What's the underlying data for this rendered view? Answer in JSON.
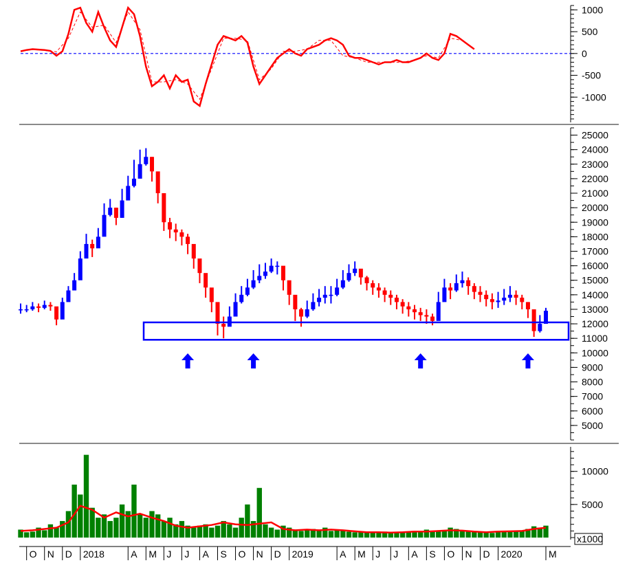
{
  "colors": {
    "background": "#ffffff",
    "osc_line": "#ff0000",
    "osc_zero": "#0000ff",
    "candle_up": "#0000ff",
    "candle_down": "#ff0000",
    "volume_bar": "#008000",
    "volume_ma": "#ff0000",
    "support_box": "#0000ff",
    "arrow": "#0000ff",
    "axis": "#000000"
  },
  "chart_data": [
    {
      "type": "line",
      "panel": "oscillator",
      "ylim": [
        -1500,
        1100
      ],
      "yticks": [
        1000,
        500,
        0,
        -500,
        -1000
      ],
      "zero_line": 0,
      "series": [
        {
          "style": "solid",
          "x": [
            0,
            5,
            10,
            15,
            20,
            25,
            30,
            35,
            40,
            45,
            50,
            55,
            60,
            65,
            70,
            75,
            80,
            85,
            90,
            95,
            100,
            105,
            110,
            115,
            120,
            125,
            130,
            135,
            140,
            145,
            150,
            155,
            160,
            165,
            170,
            175,
            180,
            185,
            190,
            195,
            200,
            205,
            210,
            215,
            220,
            225,
            230,
            235,
            240,
            245,
            250,
            255,
            260,
            265,
            270,
            275,
            280,
            285,
            290,
            295,
            300,
            305,
            310,
            315,
            320,
            325,
            330,
            335,
            340,
            345,
            350,
            355,
            360,
            365,
            370,
            375,
            380
          ],
          "y": [
            50,
            80,
            100,
            90,
            80,
            60,
            -50,
            50,
            450,
            1000,
            1050,
            700,
            500,
            950,
            600,
            300,
            150,
            600,
            1050,
            900,
            400,
            -300,
            -750,
            -650,
            -500,
            -800,
            -500,
            -650,
            -600,
            -1100,
            -1200,
            -700,
            -250,
            200,
            400,
            350,
            300,
            400,
            250,
            -300,
            -700,
            -500,
            -300,
            -100,
            0,
            100,
            0,
            -50,
            100,
            150,
            200,
            300,
            350,
            300,
            200,
            -50,
            -100,
            -100,
            -150,
            -200,
            -250,
            -200,
            -200,
            -150,
            -200,
            -200,
            -150,
            -100,
            0,
            -100,
            -150,
            0,
            450,
            400,
            300,
            200,
            100
          ]
        },
        {
          "style": "dashed",
          "x": [
            0,
            10,
            20,
            30,
            40,
            50,
            60,
            70,
            80,
            90,
            100,
            110,
            120,
            130,
            140,
            150,
            160,
            170,
            180,
            190,
            200,
            210,
            220,
            230,
            240,
            250,
            260,
            270,
            280,
            290,
            300,
            310,
            320,
            330,
            340,
            350,
            360,
            370,
            380
          ],
          "y": [
            60,
            90,
            70,
            40,
            350,
            950,
            600,
            650,
            250,
            950,
            550,
            -650,
            -650,
            -600,
            -700,
            -1050,
            -350,
            350,
            350,
            300,
            -600,
            -350,
            50,
            50,
            100,
            300,
            300,
            -50,
            -100,
            -200,
            -200,
            -200,
            -200,
            -150,
            -50,
            -100,
            350,
            300,
            100
          ]
        }
      ]
    },
    {
      "type": "candlestick",
      "panel": "price",
      "ylim": [
        4000,
        25500
      ],
      "yticks": [
        25000,
        24000,
        23000,
        22000,
        21000,
        20000,
        19000,
        18000,
        17000,
        16000,
        15000,
        14000,
        13000,
        12000,
        11000,
        10000,
        9000,
        8000,
        7000,
        6000,
        5000
      ],
      "x": [
        0,
        5,
        10,
        15,
        20,
        25,
        30,
        35,
        40,
        45,
        50,
        55,
        60,
        65,
        70,
        75,
        80,
        85,
        90,
        95,
        100,
        105,
        110,
        115,
        120,
        125,
        130,
        135,
        140,
        145,
        150,
        155,
        160,
        165,
        170,
        175,
        180,
        185,
        190,
        195,
        200,
        205,
        210,
        215,
        220,
        225,
        230,
        235,
        240,
        245,
        250,
        255,
        260,
        265,
        270,
        275,
        280,
        285,
        290,
        295,
        300,
        305,
        310,
        315,
        320,
        325,
        330,
        335,
        340,
        345,
        350,
        355,
        360,
        365,
        370,
        375,
        380,
        385,
        390,
        395,
        400,
        405,
        410,
        415,
        420,
        425,
        430,
        435,
        440
      ],
      "close": [
        13000,
        13000,
        13200,
        13100,
        13300,
        13200,
        12300,
        13500,
        14300,
        15000,
        16500,
        17500,
        17200,
        18000,
        19500,
        20000,
        19300,
        20500,
        21500,
        22000,
        23000,
        23500,
        22500,
        21000,
        19000,
        18500,
        18300,
        18000,
        17500,
        16500,
        15500,
        14500,
        13500,
        12000,
        11800,
        12500,
        13500,
        14000,
        14500,
        15000,
        15300,
        15600,
        16000,
        16000,
        15000,
        14000,
        13000,
        12500,
        13000,
        13500,
        13800,
        14000,
        14000,
        14500,
        15000,
        15500,
        15800,
        15200,
        14800,
        14500,
        14300,
        14000,
        13800,
        13500,
        13200,
        13000,
        12800,
        12600,
        12500,
        12200,
        13500,
        14500,
        14300,
        14800,
        15000,
        14600,
        14200,
        14000,
        13700,
        13500,
        13600,
        13800,
        14000,
        13800,
        13500,
        13000,
        11500,
        12000,
        12900
      ],
      "high": [
        13400,
        13300,
        13500,
        13400,
        13600,
        13500,
        13000,
        13800,
        14600,
        15500,
        17000,
        18200,
        17800,
        18600,
        20300,
        20600,
        20000,
        21300,
        22200,
        23300,
        24000,
        24100,
        23500,
        21800,
        20100,
        19300,
        18900,
        18500,
        18200,
        17400,
        16400,
        15300,
        14300,
        12800,
        12500,
        13200,
        14100,
        14600,
        15100,
        15700,
        16100,
        16200,
        16500,
        16300,
        15700,
        14600,
        13600,
        13100,
        13600,
        14100,
        14400,
        14600,
        14600,
        15100,
        15700,
        16100,
        16300,
        15700,
        15300,
        15000,
        14800,
        14500,
        14300,
        14000,
        13700,
        13500,
        13300,
        13100,
        13000,
        12700,
        14200,
        15100,
        14800,
        15400,
        15600,
        15200,
        14800,
        14600,
        14300,
        14100,
        14200,
        14400,
        14600,
        14300,
        14000,
        13500,
        12300,
        12600,
        13100
      ],
      "low": [
        12700,
        12800,
        12900,
        12800,
        13000,
        12900,
        11900,
        13100,
        13900,
        14500,
        16000,
        16900,
        16600,
        17400,
        18900,
        19400,
        18800,
        19900,
        20800,
        21400,
        22300,
        22900,
        21800,
        20300,
        18400,
        17900,
        17700,
        17400,
        16800,
        15800,
        14800,
        13800,
        12800,
        11200,
        11000,
        11900,
        12900,
        13400,
        13900,
        14400,
        14800,
        15100,
        15500,
        15400,
        14300,
        13300,
        12200,
        11800,
        12400,
        12900,
        13200,
        13400,
        13400,
        13900,
        14400,
        14900,
        15300,
        14700,
        14300,
        14000,
        13800,
        13500,
        13300,
        13000,
        12700,
        12500,
        12300,
        12200,
        12000,
        11900,
        12700,
        13900,
        13700,
        14200,
        14500,
        14000,
        13700,
        13500,
        13200,
        13000,
        13100,
        13300,
        13500,
        13300,
        13000,
        12400,
        11100,
        11400,
        12300
      ],
      "support_zone": [
        10900,
        12100
      ],
      "support_tests_x": [
        140,
        195,
        335,
        425
      ]
    },
    {
      "type": "bar",
      "panel": "volume",
      "ylim": [
        0,
        13500
      ],
      "yticks": [
        10000,
        5000,
        0
      ],
      "unit": "x1000",
      "x": [
        0,
        5,
        10,
        15,
        20,
        25,
        30,
        35,
        40,
        45,
        50,
        55,
        60,
        65,
        70,
        75,
        80,
        85,
        90,
        95,
        100,
        105,
        110,
        115,
        120,
        125,
        130,
        135,
        140,
        145,
        150,
        155,
        160,
        165,
        170,
        175,
        180,
        185,
        190,
        195,
        200,
        205,
        210,
        215,
        220,
        225,
        230,
        235,
        240,
        245,
        250,
        255,
        260,
        265,
        270,
        275,
        280,
        285,
        290,
        295,
        300,
        305,
        310,
        315,
        320,
        325,
        330,
        335,
        340,
        345,
        350,
        355,
        360,
        365,
        370,
        375,
        380,
        385,
        390,
        395,
        400,
        405,
        410,
        415,
        420,
        425,
        430,
        435,
        440
      ],
      "values": [
        1200,
        800,
        900,
        1500,
        1100,
        2000,
        1500,
        2500,
        4000,
        8000,
        6500,
        12500,
        4500,
        3000,
        3500,
        2500,
        3000,
        5000,
        4000,
        8000,
        3500,
        3000,
        4000,
        3500,
        2500,
        3000,
        2000,
        2500,
        1800,
        1500,
        1800,
        2000,
        1500,
        1800,
        2500,
        2000,
        1500,
        3000,
        5000,
        2500,
        7500,
        2000,
        1500,
        1200,
        1800,
        1500,
        1200,
        1000,
        1200,
        1300,
        1200,
        1500,
        1000,
        1200,
        1100,
        900,
        800,
        900,
        800,
        700,
        800,
        900,
        800,
        700,
        900,
        800,
        1000,
        800,
        1200,
        900,
        1000,
        1000,
        1500,
        1300,
        1100,
        1000,
        900,
        800,
        800,
        700,
        900,
        900,
        1000,
        900,
        1100,
        1300,
        1700,
        1500,
        1800
      ],
      "ma_x": [
        0,
        10,
        20,
        30,
        40,
        50,
        60,
        70,
        80,
        90,
        100,
        110,
        120,
        130,
        140,
        150,
        160,
        170,
        180,
        190,
        200,
        210,
        220,
        230,
        240,
        250,
        260,
        270,
        280,
        290,
        300,
        310,
        320,
        330,
        340,
        350,
        360,
        370,
        380,
        390,
        400,
        410,
        420,
        430,
        440
      ],
      "ma_values": [
        1000,
        1100,
        1300,
        1500,
        2300,
        4800,
        4200,
        3000,
        3800,
        3200,
        3600,
        3000,
        2500,
        1800,
        1500,
        1700,
        1900,
        2300,
        2000,
        1900,
        2100,
        2300,
        1300,
        1100,
        1200,
        1100,
        1200,
        1100,
        950,
        800,
        800,
        750,
        800,
        900,
        900,
        1000,
        1100,
        1050,
        900,
        800,
        900,
        950,
        1000,
        1300,
        1500
      ]
    }
  ],
  "x_axis": {
    "labels": [
      {
        "text": "O",
        "x": 5
      },
      {
        "text": "N",
        "x": 20
      },
      {
        "text": "D",
        "x": 35
      },
      {
        "text": "2018",
        "x": 50
      },
      {
        "text": "A",
        "x": 90
      },
      {
        "text": "M",
        "x": 105
      },
      {
        "text": "J",
        "x": 120
      },
      {
        "text": "J",
        "x": 135
      },
      {
        "text": "A",
        "x": 150
      },
      {
        "text": "S",
        "x": 165
      },
      {
        "text": "O",
        "x": 180
      },
      {
        "text": "N",
        "x": 195
      },
      {
        "text": "D",
        "x": 210
      },
      {
        "text": "2019",
        "x": 225
      },
      {
        "text": "A",
        "x": 265
      },
      {
        "text": "M",
        "x": 280
      },
      {
        "text": "J",
        "x": 295
      },
      {
        "text": "J",
        "x": 310
      },
      {
        "text": "A",
        "x": 325
      },
      {
        "text": "S",
        "x": 340
      },
      {
        "text": "O",
        "x": 355
      },
      {
        "text": "N",
        "x": 370
      },
      {
        "text": "D",
        "x": 385
      },
      {
        "text": "2020",
        "x": 400
      },
      {
        "text": "M",
        "x": 440
      }
    ]
  }
}
